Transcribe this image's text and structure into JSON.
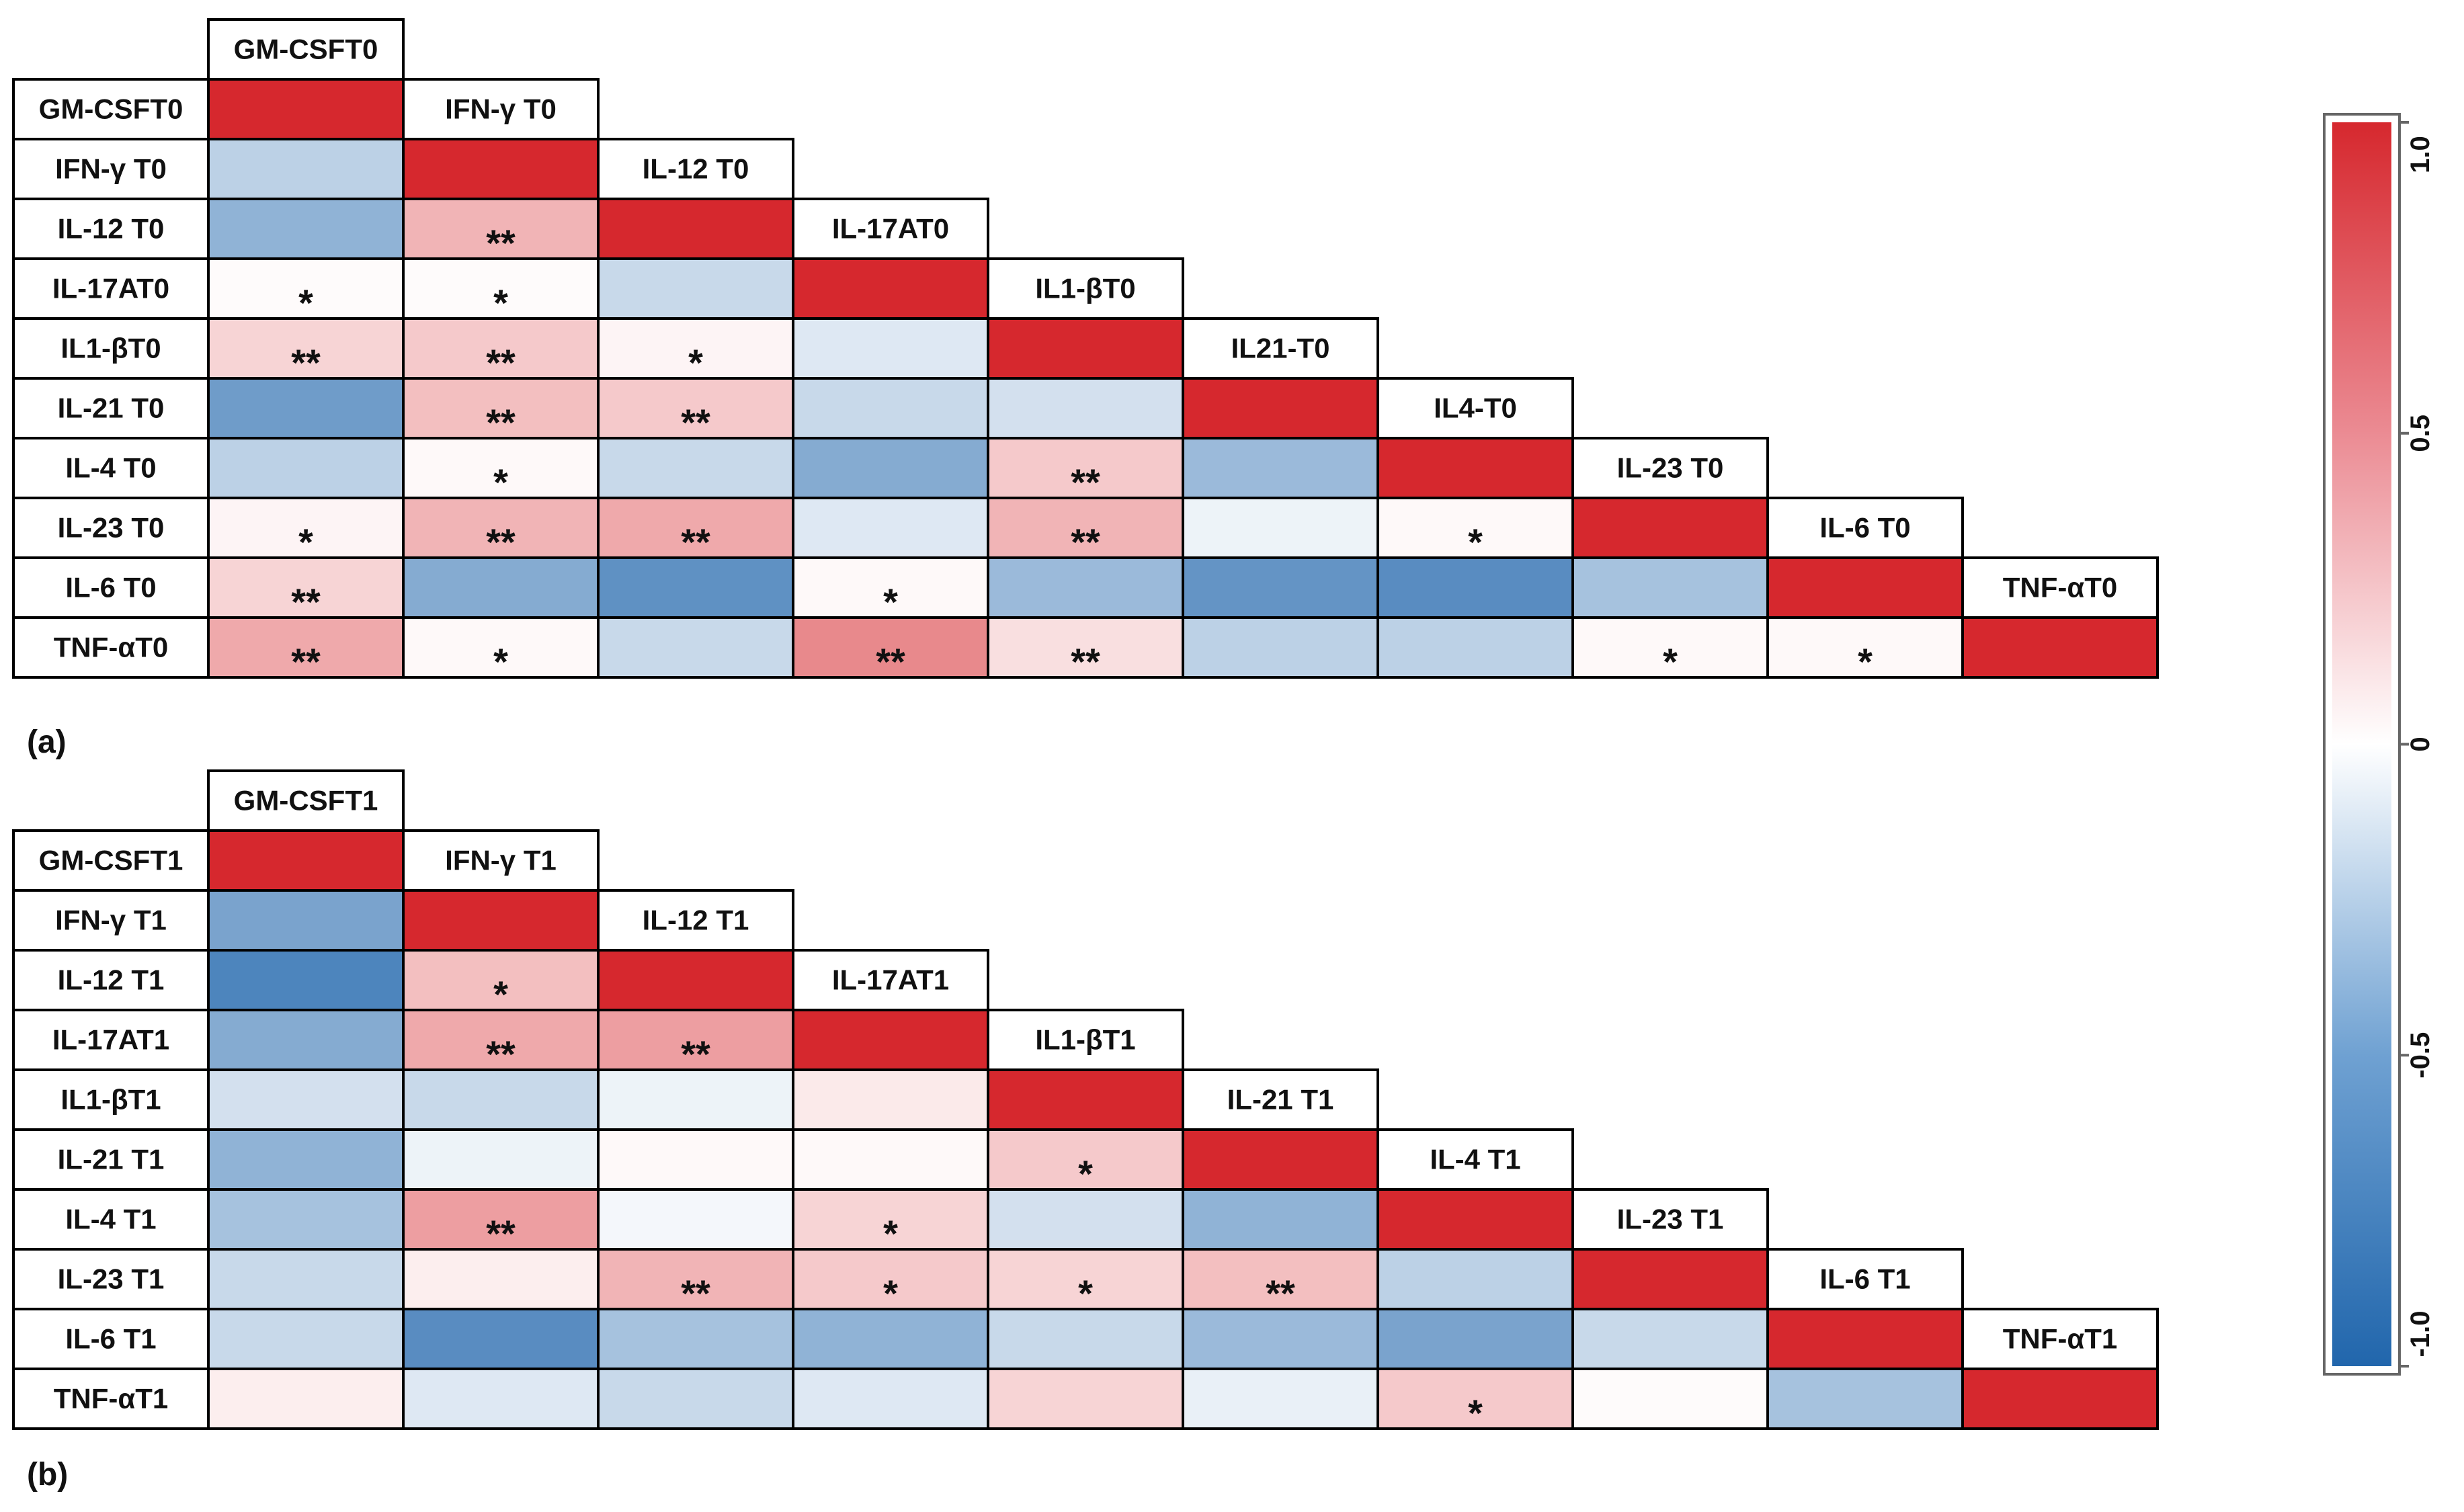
{
  "chart_data": [
    {
      "type": "heatmap",
      "panel_label": "(a)",
      "variables": [
        "GM-CSFT0",
        "IFN-γ T0",
        "IL-12 T0",
        "IL-17AT0",
        "IL1-βT0",
        "IL-21 T0",
        "IL-4 T0",
        "IL-23 T0",
        "IL-6 T0",
        "TNF-αT0"
      ],
      "column_labels": [
        "GM-CSFT0",
        "IFN-γ T0",
        "IL-12 T0",
        "IL-17AT0",
        "IL1-βT0",
        "IL21-T0",
        "IL4-T0",
        "IL-23 T0",
        "IL-6 T0",
        "TNF-αT0"
      ],
      "matrix": [
        [
          1.0
        ],
        [
          -0.3,
          1.0
        ],
        [
          -0.5,
          0.35,
          1.0
        ],
        [
          0.02,
          0.02,
          -0.25,
          1.0
        ],
        [
          0.2,
          0.25,
          0.05,
          -0.15,
          1.0
        ],
        [
          -0.65,
          0.3,
          0.25,
          -0.25,
          -0.2,
          1.0
        ],
        [
          -0.3,
          0.03,
          -0.25,
          -0.55,
          0.25,
          -0.45,
          1.0
        ],
        [
          0.05,
          0.35,
          0.4,
          -0.15,
          0.35,
          -0.08,
          0.03,
          1.0
        ],
        [
          0.2,
          -0.55,
          -0.72,
          0.03,
          -0.45,
          -0.7,
          -0.75,
          -0.4,
          1.0
        ],
        [
          0.4,
          0.03,
          -0.25,
          0.55,
          0.15,
          -0.3,
          -0.3,
          0.03,
          0.03,
          1.0
        ]
      ],
      "significance": [
        [
          ""
        ],
        [
          "",
          ""
        ],
        [
          "",
          "**",
          ""
        ],
        [
          "*",
          "*",
          "",
          ""
        ],
        [
          "**",
          "**",
          "*",
          "",
          ""
        ],
        [
          "",
          "**",
          "**",
          "",
          "",
          ""
        ],
        [
          "",
          "*",
          "",
          "",
          "**",
          "",
          ""
        ],
        [
          "*",
          "**",
          "**",
          "",
          "**",
          "",
          "*",
          ""
        ],
        [
          "**",
          "",
          "",
          "*",
          "",
          "",
          "",
          "",
          ""
        ],
        [
          "**",
          "*",
          "",
          "**",
          "**",
          "",
          "",
          "*",
          "*",
          ""
        ]
      ]
    },
    {
      "type": "heatmap",
      "panel_label": "(b)",
      "variables": [
        "GM-CSFT1",
        "IFN-γ T1",
        "IL-12 T1",
        "IL-17AT1",
        "IL1-βT1",
        "IL-21 T1",
        "IL-4 T1",
        "IL-23 T1",
        "IL-6 T1",
        "TNF-αT1"
      ],
      "column_labels": [
        "GM-CSFT1",
        "IFN-γ T1",
        "IL-12 T1",
        "IL-17AT1",
        "IL1-βT1",
        "IL-21 T1",
        "IL-4 T1",
        "IL-23 T1",
        "IL-6 T1",
        "TNF-αT1"
      ],
      "matrix": [
        [
          1.0
        ],
        [
          -0.6,
          1.0
        ],
        [
          -0.8,
          0.3,
          1.0
        ],
        [
          -0.55,
          0.4,
          0.45,
          1.0
        ],
        [
          -0.2,
          -0.25,
          -0.08,
          0.1,
          1.0
        ],
        [
          -0.5,
          -0.08,
          0.03,
          0.03,
          0.25,
          1.0
        ],
        [
          -0.4,
          0.45,
          -0.05,
          0.2,
          -0.2,
          -0.5,
          1.0
        ],
        [
          -0.25,
          0.08,
          0.35,
          0.25,
          0.2,
          0.3,
          -0.3,
          1.0
        ],
        [
          -0.25,
          -0.75,
          -0.4,
          -0.5,
          -0.25,
          -0.45,
          -0.6,
          -0.25,
          1.0
        ],
        [
          0.08,
          -0.15,
          -0.25,
          -0.15,
          0.2,
          -0.1,
          0.25,
          0.02,
          -0.4,
          1.0
        ]
      ],
      "significance": [
        [
          ""
        ],
        [
          "",
          ""
        ],
        [
          "",
          "*",
          ""
        ],
        [
          "",
          "**",
          "**",
          ""
        ],
        [
          "",
          "",
          "",
          "",
          ""
        ],
        [
          "",
          "",
          "",
          "",
          "*",
          ""
        ],
        [
          "",
          "**",
          "",
          "*",
          "",
          "",
          ""
        ],
        [
          "",
          "",
          "**",
          "*",
          "*",
          "**",
          "",
          ""
        ],
        [
          "",
          "",
          "",
          "",
          "",
          "",
          "",
          "",
          ""
        ],
        [
          "",
          "",
          "",
          "",
          "",
          "",
          "*",
          "",
          "",
          ""
        ]
      ]
    }
  ],
  "colorbar": {
    "range": [
      -1.0,
      1.0
    ],
    "tick_labels": [
      "1.0",
      "0.5",
      "0",
      "-0.5",
      "-1.0"
    ],
    "tick_values": [
      1.0,
      0.5,
      0,
      -0.5,
      -1.0
    ],
    "colors": {
      "negative": "#2166ac",
      "neutral": "#ffffff",
      "positive": "#d6282e"
    }
  }
}
